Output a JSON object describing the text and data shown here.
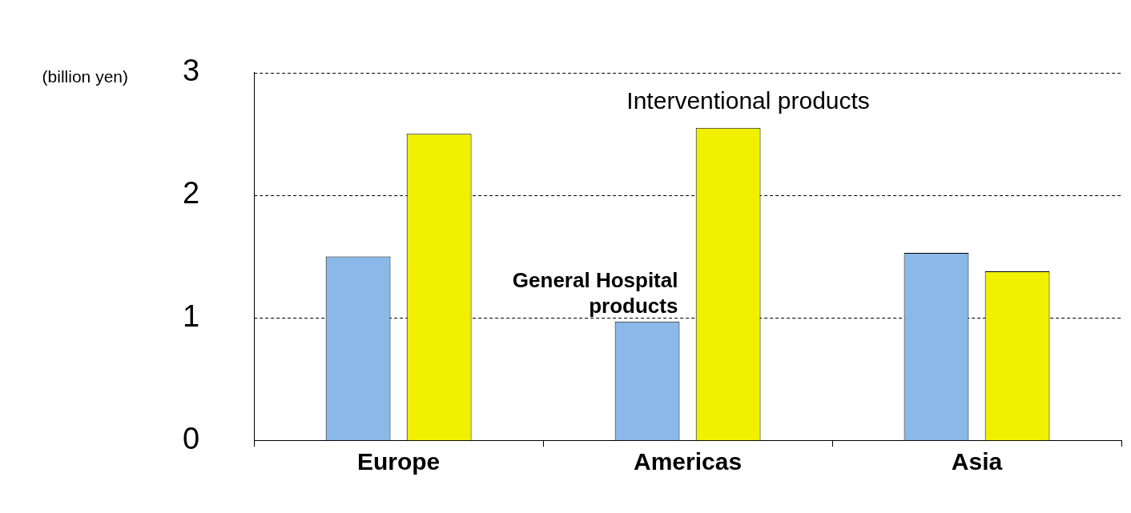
{
  "chart_data": {
    "type": "bar",
    "ylabel": "(billion yen)",
    "categories": [
      "Europe",
      "Americas",
      "Asia"
    ],
    "series": [
      {
        "name": "General Hospital products",
        "color": "#8ab8e8",
        "values": [
          1.5,
          0.97,
          1.53
        ]
      },
      {
        "name": "Interventional products",
        "color": "#f0f000",
        "values": [
          2.5,
          2.55,
          1.38
        ]
      }
    ],
    "ylim": [
      0,
      3
    ],
    "yticks": [
      0,
      1,
      2,
      3
    ],
    "grid": "y",
    "legend": false
  }
}
